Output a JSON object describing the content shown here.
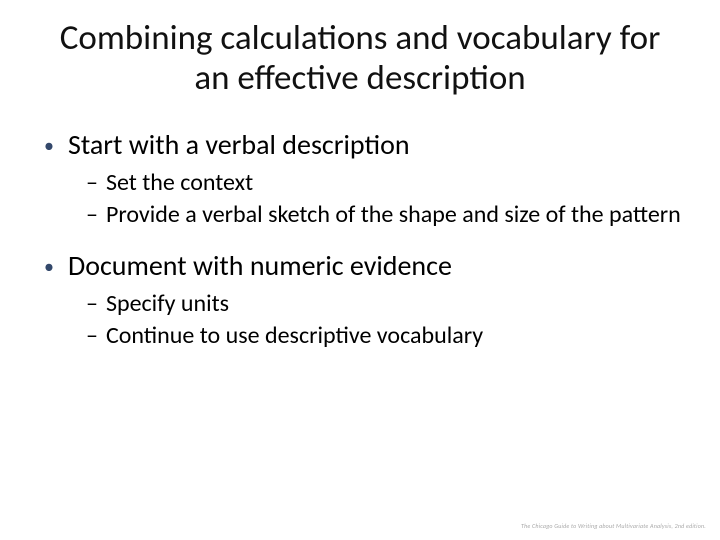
{
  "slide": {
    "background_color": "#ffffff",
    "text_color": "#000000",
    "bullet_marker_color": "#33486b",
    "title": "Combining calculations and vocabulary for an effective description",
    "title_fontsize": 35,
    "body_fontsize_l1": 28,
    "body_fontsize_l2": 24,
    "bullets": [
      {
        "text": "Start with a verbal description",
        "sub": [
          "Set the context",
          "Provide a verbal sketch of the shape and size of the pattern"
        ]
      },
      {
        "text": "Document with numeric evidence",
        "sub": [
          "Specify units",
          "Continue to use descriptive vocabulary"
        ]
      }
    ],
    "footer": "The Chicago Guide to Writing about Multivariate Analysis, 2nd edition."
  }
}
